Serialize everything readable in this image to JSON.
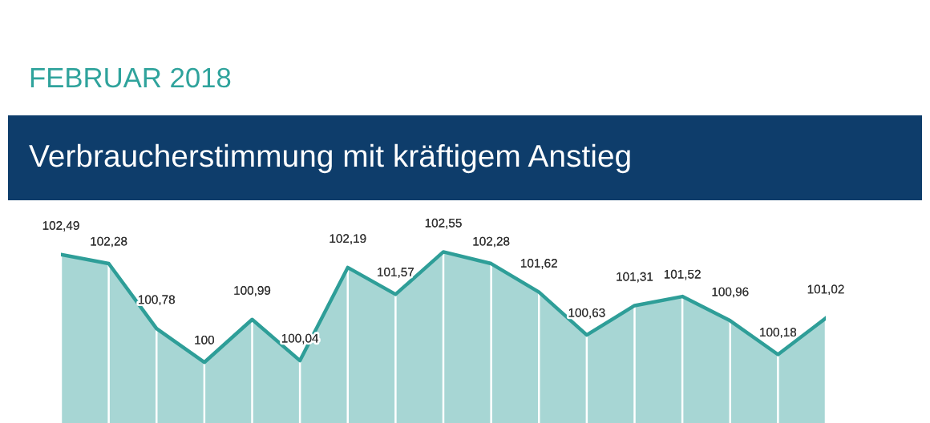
{
  "chart_data": {
    "type": "area",
    "subtitle": "FEBRUAR 2018",
    "title": "Verbraucherstimmung mit kräftigem Anstieg",
    "categories": [
      null,
      null,
      null,
      null,
      null,
      null,
      null,
      null,
      null,
      null,
      null,
      null,
      null,
      null,
      null,
      null,
      null
    ],
    "series": [
      {
        "color": "#2e9e98",
        "values": [
          102.49,
          102.28,
          100.78,
          100,
          100.99,
          100.04,
          102.19,
          101.57,
          102.55,
          102.28,
          101.62,
          100.63,
          101.31,
          101.52,
          100.96,
          100.18,
          101.02
        ],
        "value_labels": [
          "102,49",
          "102,28",
          "100,78",
          "100",
          "100,99",
          "100,04",
          "102,19",
          "101,57",
          "102,55",
          "102,28",
          "101,62",
          "100,63",
          "101,31",
          "101,52",
          "100,96",
          "100,18",
          "101,02"
        ]
      }
    ],
    "legend": false
  }
}
